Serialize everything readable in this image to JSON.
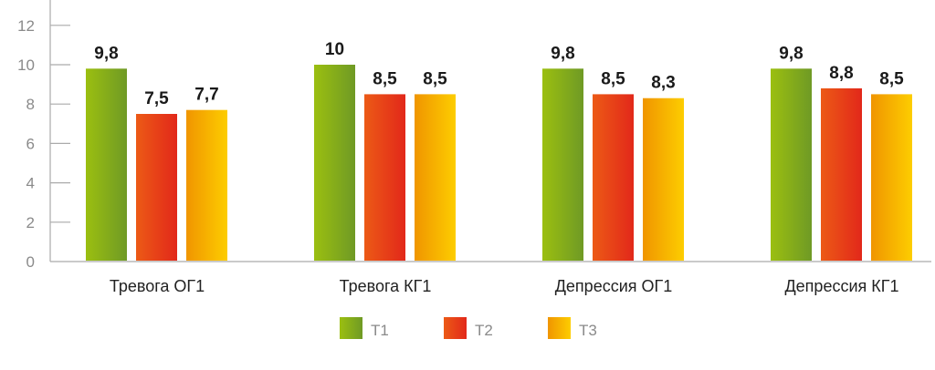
{
  "chart_data": {
    "type": "bar",
    "categories": [
      "Тревога ОГ1",
      "Тревога КГ1",
      "Депрессия ОГ1",
      "Депрессия КГ1"
    ],
    "series": [
      {
        "name": "T1",
        "values": [
          9.8,
          10,
          9.8,
          9.8
        ],
        "labels": [
          "9,8",
          "10",
          "9,8",
          "9,8"
        ],
        "colors": [
          "#9bbf10",
          "#6f9a25"
        ]
      },
      {
        "name": "T2",
        "values": [
          7.5,
          8.5,
          8.5,
          8.8
        ],
        "labels": [
          "7,5",
          "8,5",
          "8,5",
          "8,8"
        ],
        "colors": [
          "#ec5a16",
          "#e2281a"
        ]
      },
      {
        "name": "T3",
        "values": [
          7.7,
          8.5,
          8.3,
          8.5
        ],
        "labels": [
          "7,7",
          "8,5",
          "8,3",
          "8,5"
        ],
        "colors": [
          "#f09500",
          "#fdcd00"
        ]
      }
    ],
    "yticks": [
      "0",
      "2",
      "4",
      "6",
      "8",
      "10",
      "12"
    ],
    "ylim": [
      0,
      12
    ],
    "grid": false,
    "legend": "bottom"
  }
}
